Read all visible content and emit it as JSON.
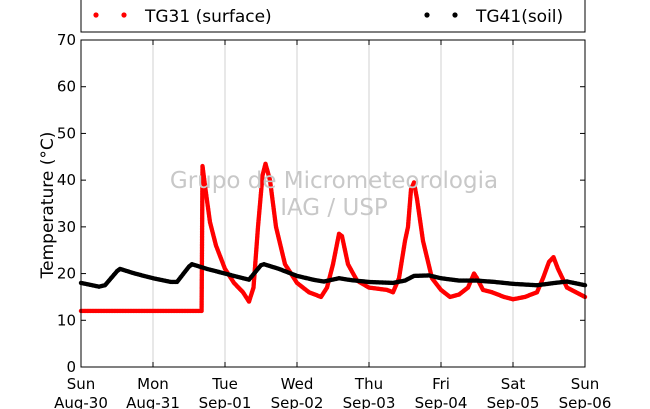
{
  "chart_data": {
    "type": "scatter",
    "title": "",
    "xlabel": "",
    "ylabel": "Temperature (°C)",
    "ylim": [
      0,
      70
    ],
    "yticks": [
      0,
      10,
      20,
      30,
      40,
      50,
      60,
      70
    ],
    "xlim": [
      "2015-08-30",
      "2015-09-06"
    ],
    "xticks": [
      {
        "day": "Sun",
        "date": "Aug-30"
      },
      {
        "day": "Mon",
        "date": "Aug-31"
      },
      {
        "day": "Tue",
        "date": "Sep-01"
      },
      {
        "day": "Wed",
        "date": "Sep-02"
      },
      {
        "day": "Thu",
        "date": "Sep-03"
      },
      {
        "day": "Fri",
        "date": "Sep-04"
      },
      {
        "day": "Sat",
        "date": "Sep-05"
      },
      {
        "day": "Sun",
        "date": "Sep-06"
      }
    ],
    "grid": "vertical",
    "legend_position": "top",
    "watermark": [
      "Grupo de Micrometeorologia",
      "IAG / USP"
    ],
    "series": [
      {
        "name": "TG31 (surface)",
        "color": "#ff0000",
        "points": [
          [
            "2015-08-30 00:00",
            12
          ],
          [
            "2015-08-31 12:00",
            12
          ],
          [
            "2015-08-31 16:12",
            12
          ],
          [
            "2015-08-31 16:30",
            43
          ],
          [
            "2015-08-31 17:30",
            38
          ],
          [
            "2015-08-31 19:00",
            31
          ],
          [
            "2015-08-31 21:00",
            26
          ],
          [
            "2015-09-01 00:00",
            21
          ],
          [
            "2015-09-01 03:00",
            18
          ],
          [
            "2015-09-01 06:00",
            16
          ],
          [
            "2015-09-01 08:00",
            14
          ],
          [
            "2015-09-01 09:30",
            17
          ],
          [
            "2015-09-01 11:00",
            30
          ],
          [
            "2015-09-01 12:30",
            41
          ],
          [
            "2015-09-01 13:30",
            43.5
          ],
          [
            "2015-09-01 15:00",
            40
          ],
          [
            "2015-09-01 17:00",
            30
          ],
          [
            "2015-09-01 20:00",
            22
          ],
          [
            "2015-09-02 00:00",
            18
          ],
          [
            "2015-09-02 04:00",
            16
          ],
          [
            "2015-09-02 08:00",
            15
          ],
          [
            "2015-09-02 10:00",
            17
          ],
          [
            "2015-09-02 12:00",
            22
          ],
          [
            "2015-09-02 14:00",
            28.5
          ],
          [
            "2015-09-02 15:00",
            28
          ],
          [
            "2015-09-02 17:00",
            22
          ],
          [
            "2015-09-02 20:00",
            18.5
          ],
          [
            "2015-09-03 00:00",
            17
          ],
          [
            "2015-09-03 06:00",
            16.5
          ],
          [
            "2015-09-03 08:00",
            16
          ],
          [
            "2015-09-03 10:00",
            19
          ],
          [
            "2015-09-03 12:00",
            27
          ],
          [
            "2015-09-03 13:00",
            30
          ],
          [
            "2015-09-03 14:00",
            38
          ],
          [
            "2015-09-03 15:00",
            39.5
          ],
          [
            "2015-09-03 16:00",
            36
          ],
          [
            "2015-09-03 18:00",
            27
          ],
          [
            "2015-09-03 21:00",
            19
          ],
          [
            "2015-09-04 00:00",
            16.5
          ],
          [
            "2015-09-04 03:00",
            15
          ],
          [
            "2015-09-04 06:00",
            15.5
          ],
          [
            "2015-09-04 09:00",
            17
          ],
          [
            "2015-09-04 11:00",
            20
          ],
          [
            "2015-09-04 12:00",
            19
          ],
          [
            "2015-09-04 14:00",
            16.5
          ],
          [
            "2015-09-04 17:00",
            16
          ],
          [
            "2015-09-04 21:00",
            15
          ],
          [
            "2015-09-05 00:00",
            14.5
          ],
          [
            "2015-09-05 04:00",
            15
          ],
          [
            "2015-09-05 08:00",
            16
          ],
          [
            "2015-09-05 10:00",
            19
          ],
          [
            "2015-09-05 12:00",
            22.5
          ],
          [
            "2015-09-05 13:30",
            23.5
          ],
          [
            "2015-09-05 15:00",
            21
          ],
          [
            "2015-09-05 18:00",
            17
          ],
          [
            "2015-09-05 21:00",
            16
          ],
          [
            "2015-09-06 00:00",
            15
          ]
        ]
      },
      {
        "name": "TG41(soil)",
        "color": "#000000",
        "points": [
          [
            "2015-08-30 00:00",
            18
          ],
          [
            "2015-08-30 06:00",
            17.2
          ],
          [
            "2015-08-30 08:00",
            17.5
          ],
          [
            "2015-08-30 12:00",
            20.5
          ],
          [
            "2015-08-30 13:00",
            21
          ],
          [
            "2015-08-30 18:00",
            20
          ],
          [
            "2015-08-31 00:00",
            19
          ],
          [
            "2015-08-31 06:00",
            18.2
          ],
          [
            "2015-08-31 08:00",
            18.2
          ],
          [
            "2015-08-31 12:00",
            21.5
          ],
          [
            "2015-08-31 13:00",
            22
          ],
          [
            "2015-08-31 18:00",
            21
          ],
          [
            "2015-09-01 00:00",
            20
          ],
          [
            "2015-09-01 06:00",
            19
          ],
          [
            "2015-09-01 08:00",
            18.7
          ],
          [
            "2015-09-01 12:00",
            21.8
          ],
          [
            "2015-09-01 13:00",
            22
          ],
          [
            "2015-09-01 18:00",
            21
          ],
          [
            "2015-09-02 00:00",
            19.5
          ],
          [
            "2015-09-02 06:00",
            18.6
          ],
          [
            "2015-09-02 09:00",
            18.3
          ],
          [
            "2015-09-02 14:00",
            19
          ],
          [
            "2015-09-02 18:00",
            18.6
          ],
          [
            "2015-09-03 00:00",
            18.2
          ],
          [
            "2015-09-03 08:00",
            18
          ],
          [
            "2015-09-03 12:00",
            18.5
          ],
          [
            "2015-09-03 15:00",
            19.5
          ],
          [
            "2015-09-03 20:00",
            19.6
          ],
          [
            "2015-09-04 00:00",
            19
          ],
          [
            "2015-09-04 06:00",
            18.5
          ],
          [
            "2015-09-04 12:00",
            18.5
          ],
          [
            "2015-09-04 18:00",
            18.2
          ],
          [
            "2015-09-05 00:00",
            17.8
          ],
          [
            "2015-09-05 08:00",
            17.5
          ],
          [
            "2015-09-05 14:00",
            18
          ],
          [
            "2015-09-05 18:00",
            18.3
          ],
          [
            "2015-09-06 00:00",
            17.5
          ]
        ]
      }
    ]
  }
}
